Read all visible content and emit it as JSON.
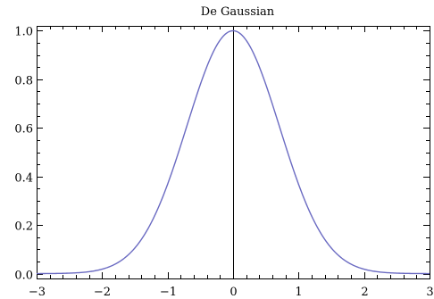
{
  "chart_data": {
    "type": "line",
    "title": "De Gaussian",
    "xlabel": "",
    "ylabel": "",
    "xlim": [
      -3,
      3
    ],
    "ylim": [
      -0.02,
      1.02
    ],
    "x_ticks": [
      -3,
      -2,
      -1,
      0,
      1,
      2,
      3
    ],
    "x_tick_labels": [
      "−3",
      "−2",
      "−1",
      "0",
      "1",
      "2",
      "3"
    ],
    "y_ticks": [
      0.0,
      0.2,
      0.4,
      0.6,
      0.8,
      1.0
    ],
    "y_tick_labels": [
      "0.0",
      "0.2",
      "0.4",
      "0.6",
      "0.8",
      "1.0"
    ],
    "grid": false,
    "axis_at_zero": true,
    "series": [
      {
        "color": "#6b6bc2",
        "function": "exp(-x^2)",
        "x": [
          -3,
          -2.75,
          -2.5,
          -2.25,
          -2,
          -1.75,
          -1.5,
          -1.25,
          -1,
          -0.75,
          -0.5,
          -0.25,
          0,
          0.25,
          0.5,
          0.75,
          1,
          1.25,
          1.5,
          1.75,
          2,
          2.25,
          2.5,
          2.75,
          3
        ],
        "y": [
          0.0001,
          0.0005,
          0.0019,
          0.0063,
          0.0183,
          0.0468,
          0.1054,
          0.2096,
          0.3679,
          0.5698,
          0.7788,
          0.9394,
          1.0,
          0.9394,
          0.7788,
          0.5698,
          0.3679,
          0.2096,
          0.1054,
          0.0468,
          0.0183,
          0.0063,
          0.0019,
          0.0005,
          0.0001
        ]
      }
    ]
  }
}
